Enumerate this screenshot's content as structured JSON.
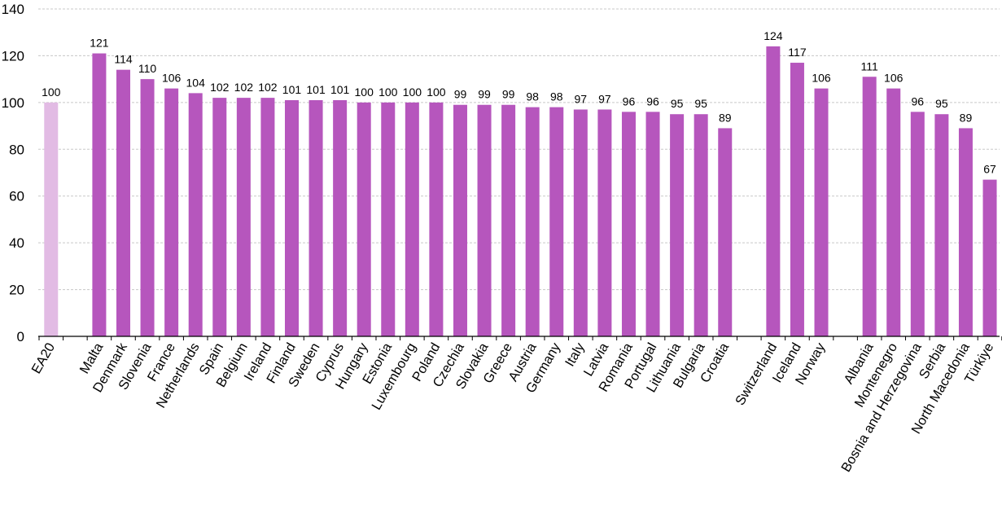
{
  "chart_data": {
    "type": "bar",
    "title": "",
    "xlabel": "",
    "ylabel": "",
    "ylim": [
      0,
      140
    ],
    "yticks": [
      0,
      20,
      40,
      60,
      80,
      100,
      120,
      140
    ],
    "grid": "horizontal dashed",
    "legend": "none",
    "colors": {
      "bar": "#b656bd",
      "reference_bar": "#e2bbe4",
      "grid": "#c8c8c8",
      "axis": "#000000"
    },
    "groups": [
      {
        "bars": [
          {
            "label": "EA20",
            "value": 100,
            "value_label": "100",
            "reference": true
          }
        ]
      },
      {
        "bars": [
          {
            "label": "Malta",
            "value": 121,
            "value_label": "121"
          },
          {
            "label": "Denmark",
            "value": 114,
            "value_label": "114"
          },
          {
            "label": "Slovenia",
            "value": 110,
            "value_label": "110"
          },
          {
            "label": "France",
            "value": 106,
            "value_label": "106"
          },
          {
            "label": "Netherlands",
            "value": 104,
            "value_label": "104"
          },
          {
            "label": "Spain",
            "value": 102,
            "value_label": "102"
          },
          {
            "label": "Belgium",
            "value": 102,
            "value_label": "102"
          },
          {
            "label": "Ireland",
            "value": 102,
            "value_label": "102"
          },
          {
            "label": "Finland",
            "value": 101,
            "value_label": "101"
          },
          {
            "label": "Sweden",
            "value": 101,
            "value_label": "101"
          },
          {
            "label": "Cyprus",
            "value": 101,
            "value_label": "101"
          },
          {
            "label": "Hungary",
            "value": 100,
            "value_label": "100"
          },
          {
            "label": "Estonia",
            "value": 100,
            "value_label": "100"
          },
          {
            "label": "Luxembourg",
            "value": 100,
            "value_label": "100"
          },
          {
            "label": "Poland",
            "value": 100,
            "value_label": "100"
          },
          {
            "label": "Czechia",
            "value": 99,
            "value_label": "99"
          },
          {
            "label": "Slovakia",
            "value": 99,
            "value_label": "99"
          },
          {
            "label": "Greece",
            "value": 99,
            "value_label": "99"
          },
          {
            "label": "Austria",
            "value": 98,
            "value_label": "98"
          },
          {
            "label": "Germany",
            "value": 98,
            "value_label": "98"
          },
          {
            "label": "Italy",
            "value": 97,
            "value_label": "97"
          },
          {
            "label": "Latvia",
            "value": 97,
            "value_label": "97"
          },
          {
            "label": "Romania",
            "value": 96,
            "value_label": "96"
          },
          {
            "label": "Portugal",
            "value": 96,
            "value_label": "96"
          },
          {
            "label": "Lithuania",
            "value": 95,
            "value_label": "95"
          },
          {
            "label": "Bulgaria",
            "value": 95,
            "value_label": "95"
          },
          {
            "label": "Croatia",
            "value": 89,
            "value_label": "89"
          }
        ]
      },
      {
        "bars": [
          {
            "label": "Switzerland",
            "value": 124,
            "value_label": "124"
          },
          {
            "label": "Iceland",
            "value": 117,
            "value_label": "117"
          },
          {
            "label": "Norway",
            "value": 106,
            "value_label": "106"
          }
        ]
      },
      {
        "bars": [
          {
            "label": "Albania",
            "value": 111,
            "value_label": "111"
          },
          {
            "label": "Montenegro",
            "value": 106,
            "value_label": "106"
          },
          {
            "label": "Bosnia and Herzegovina",
            "value": 96,
            "value_label": "96"
          },
          {
            "label": "Serbia",
            "value": 95,
            "value_label": "95"
          },
          {
            "label": "North Macedonia",
            "value": 89,
            "value_label": "89"
          },
          {
            "label": "Türkiye",
            "value": 67,
            "value_label": "67"
          }
        ]
      }
    ]
  }
}
